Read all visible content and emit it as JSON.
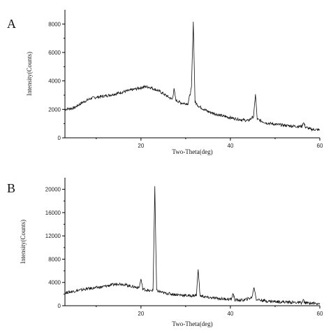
{
  "chart_data": [
    {
      "type": "line",
      "panel_label": "A",
      "xlabel": "Two-Theta(deg)",
      "ylabel": "Intensity(Counts)",
      "xlim": [
        3,
        60
      ],
      "ylim": [
        0,
        9000
      ],
      "xticks": [
        20,
        40,
        60
      ],
      "yticks": [
        0,
        2000,
        4000,
        6000,
        8000
      ],
      "x": [
        3,
        5,
        7,
        9,
        11,
        13,
        15,
        17,
        19,
        21,
        22,
        24,
        26,
        27,
        27.4,
        27.8,
        29,
        30.5,
        31.3,
        31.7,
        32.1,
        33,
        35,
        38,
        41,
        44,
        45.2,
        45.6,
        46,
        48,
        50,
        53,
        55,
        56,
        56.3,
        56.8,
        58,
        60
      ],
      "values": [
        2000,
        2100,
        2500,
        2800,
        2900,
        3000,
        3150,
        3300,
        3450,
        3600,
        3550,
        3300,
        2900,
        2700,
        3400,
        2650,
        2450,
        2400,
        3500,
        8200,
        2500,
        2200,
        1850,
        1550,
        1350,
        1200,
        1500,
        3100,
        1300,
        1050,
        950,
        850,
        800,
        800,
        1100,
        750,
        600,
        550
      ],
      "grid": false
    },
    {
      "type": "line",
      "panel_label": "B",
      "xlabel": "Two-Theta(deg)",
      "ylabel": "Intensity(Counts)",
      "xlim": [
        3,
        60
      ],
      "ylim": [
        0,
        22000
      ],
      "xticks": [
        20,
        40,
        60
      ],
      "yticks": [
        0,
        4000,
        8000,
        12000,
        16000,
        20000
      ],
      "x": [
        3,
        5,
        8,
        11,
        13,
        15,
        16,
        18,
        19.6,
        20,
        20.4,
        22,
        22.7,
        23.1,
        23.5,
        25,
        28,
        31,
        32.4,
        32.8,
        33.2,
        35,
        38,
        40.2,
        40.6,
        41,
        43,
        44.8,
        45.3,
        45.8,
        48,
        52,
        56,
        56.3,
        56.6,
        58,
        60
      ],
      "values": [
        2200,
        2500,
        2900,
        3200,
        3500,
        3800,
        3700,
        3300,
        3100,
        4600,
        2900,
        2500,
        2700,
        20500,
        2600,
        2200,
        1900,
        1700,
        1800,
        6400,
        1700,
        1400,
        1200,
        1100,
        2100,
        1000,
        950,
        1400,
        3200,
        1100,
        800,
        650,
        500,
        1000,
        500,
        450,
        400
      ],
      "grid": false
    }
  ]
}
